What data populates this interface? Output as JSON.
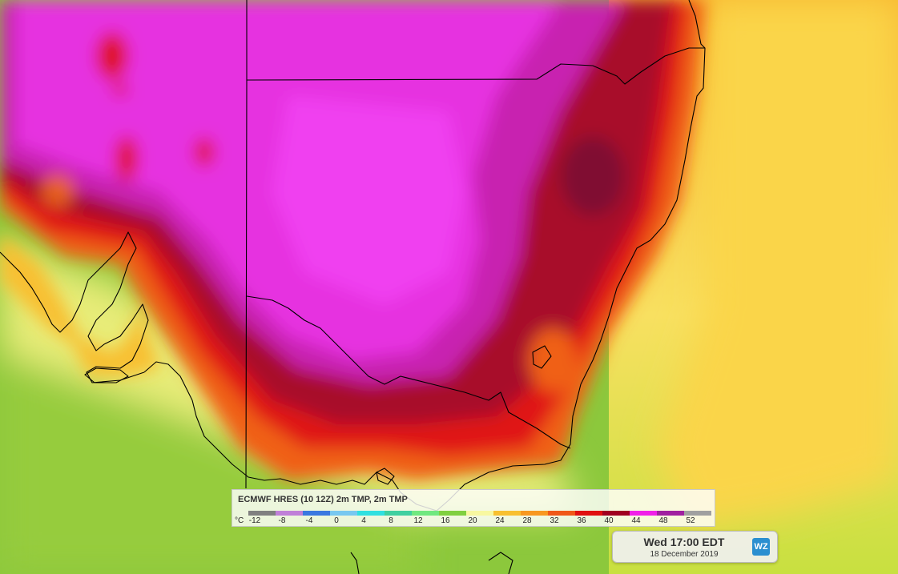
{
  "legend": {
    "title": "ECMWF HRES (10 12Z) 2m TMP, 2m TMP",
    "unit_label": "°C",
    "colors": [
      "#808080",
      "#c080d8",
      "#3a78e0",
      "#78c8f0",
      "#30e0e0",
      "#40d0a0",
      "#70e880",
      "#80d040",
      "#f8f8a0",
      "#f8c030",
      "#f89820",
      "#f05818",
      "#e01010",
      "#a00020",
      "#f020e8",
      "#a020a0",
      "#a0a0a0"
    ],
    "ticks": [
      {
        "label": "-12",
        "index": 0
      },
      {
        "label": "-8",
        "index": 1
      },
      {
        "label": "-4",
        "index": 2
      },
      {
        "label": "0",
        "index": 3
      },
      {
        "label": "4",
        "index": 4
      },
      {
        "label": "8",
        "index": 5
      },
      {
        "label": "12",
        "index": 6
      },
      {
        "label": "16",
        "index": 7
      },
      {
        "label": "20",
        "index": 8
      },
      {
        "label": "24",
        "index": 9
      },
      {
        "label": "28",
        "index": 10
      },
      {
        "label": "32",
        "index": 11
      },
      {
        "label": "36",
        "index": 12
      },
      {
        "label": "40",
        "index": 13
      },
      {
        "label": "44",
        "index": 14
      },
      {
        "label": "48",
        "index": 15
      },
      {
        "label": "52",
        "index": 16
      }
    ]
  },
  "time": {
    "main": "Wed 17:00 EDT",
    "date": "18 December 2019"
  },
  "logo": {
    "text": "WZ"
  }
}
